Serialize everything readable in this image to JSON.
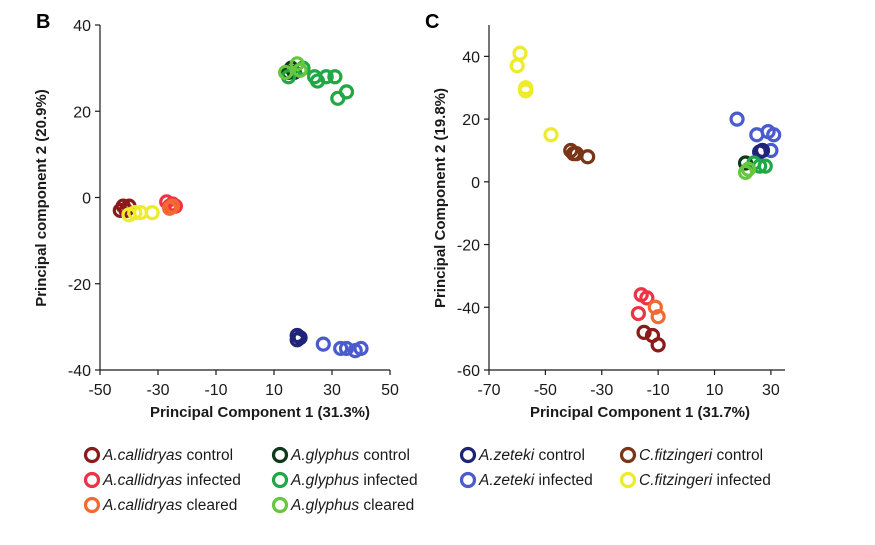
{
  "chart_data": [
    {
      "panel": "B",
      "type": "scatter",
      "xlabel": "Principal Component 1 (31.3%)",
      "ylabel": "Principal component 2 (20.9%)",
      "xlim": [
        -50,
        50
      ],
      "ylim": [
        -40,
        40
      ],
      "xticks": [
        "-50",
        "-30",
        "-10",
        "10",
        "30",
        "50"
      ],
      "yticks": [
        "40",
        "20",
        "0",
        "-20",
        "-40"
      ],
      "series": [
        {
          "group": "ac_control",
          "points": [
            [
              -43,
              -3
            ],
            [
              -42,
              -2
            ],
            [
              -41,
              -3
            ],
            [
              -40,
              -2
            ]
          ]
        },
        {
          "group": "ac_infected",
          "points": [
            [
              -27,
              -1
            ],
            [
              -26,
              -2
            ],
            [
              -25,
              -1.5
            ],
            [
              -24,
              -2
            ]
          ]
        },
        {
          "group": "ac_cleared",
          "points": [
            [
              -26,
              -2.5
            ],
            [
              -25,
              -2
            ]
          ]
        },
        {
          "group": "cf_infected",
          "points": [
            [
              -40,
              -4
            ],
            [
              -38,
              -3.5
            ],
            [
              -36,
              -3.5
            ],
            [
              -32,
              -3.5
            ]
          ]
        },
        {
          "group": "ag_control",
          "points": [
            [
              15,
              29
            ],
            [
              16,
              30
            ],
            [
              17,
              29
            ]
          ]
        },
        {
          "group": "ag_infected",
          "points": [
            [
              15,
              28
            ],
            [
              20,
              30
            ],
            [
              24,
              28
            ],
            [
              25,
              27
            ],
            [
              28,
              28
            ],
            [
              31,
              28
            ],
            [
              32,
              23
            ],
            [
              35,
              24.5
            ]
          ]
        },
        {
          "group": "ag_cleared",
          "points": [
            [
              14,
              29
            ],
            [
              18,
              31
            ],
            [
              19,
              29.5
            ]
          ]
        },
        {
          "group": "az_control",
          "points": [
            [
              18,
              -32
            ],
            [
              18,
              -33
            ],
            [
              19,
              -32.5
            ]
          ]
        },
        {
          "group": "az_infected",
          "points": [
            [
              27,
              -34
            ],
            [
              33,
              -35
            ],
            [
              35,
              -35
            ],
            [
              38,
              -35.5
            ],
            [
              40,
              -35
            ]
          ]
        }
      ]
    },
    {
      "panel": "C",
      "type": "scatter",
      "xlabel": "Principal Component 1 (31.7%)",
      "ylabel": "Principal Component 2 (19.8%)",
      "xlim": [
        -70,
        35
      ],
      "ylim": [
        -60,
        50
      ],
      "xticks": [
        "-70",
        "-50",
        "-30",
        "-10",
        "10",
        "30"
      ],
      "yticks": [
        "40",
        "20",
        "0",
        "-20",
        "-40",
        "-60"
      ],
      "series": [
        {
          "group": "cf_infected",
          "points": [
            [
              -59,
              41
            ],
            [
              -60,
              37
            ],
            [
              -57,
              30
            ],
            [
              -57,
              29
            ],
            [
              -48,
              15
            ]
          ]
        },
        {
          "group": "cf_control",
          "points": [
            [
              -41,
              10
            ],
            [
              -40,
              9
            ],
            [
              -39,
              9
            ],
            [
              -35,
              8
            ]
          ]
        },
        {
          "group": "ac_infected",
          "points": [
            [
              -16,
              -36
            ],
            [
              -14,
              -37
            ],
            [
              -17,
              -42
            ]
          ]
        },
        {
          "group": "ac_cleared",
          "points": [
            [
              -11,
              -40
            ],
            [
              -10,
              -43
            ]
          ]
        },
        {
          "group": "ac_control",
          "points": [
            [
              -15,
              -48
            ],
            [
              -12,
              -49
            ],
            [
              -10,
              -52
            ]
          ]
        },
        {
          "group": "az_infected",
          "points": [
            [
              18,
              20
            ],
            [
              25,
              15
            ],
            [
              29,
              16
            ],
            [
              31,
              15
            ],
            [
              30,
              10
            ],
            [
              27,
              10
            ]
          ]
        },
        {
          "group": "az_control",
          "points": [
            [
              27,
              10
            ],
            [
              26,
              9.5
            ]
          ]
        },
        {
          "group": "ag_control",
          "points": [
            [
              21,
              6
            ]
          ]
        },
        {
          "group": "ag_infected",
          "points": [
            [
              24,
              6
            ],
            [
              28,
              5
            ],
            [
              26,
              5
            ]
          ]
        },
        {
          "group": "ag_cleared",
          "points": [
            [
              22,
              4
            ],
            [
              21,
              3
            ]
          ]
        }
      ]
    }
  ],
  "legend": [
    {
      "id": "ac_control",
      "species": "A.callidryas",
      "status": "control",
      "color": "#8b1a1a"
    },
    {
      "id": "ac_infected",
      "species": "A.callidryas",
      "status": "infected",
      "color": "#ee3344"
    },
    {
      "id": "ac_cleared",
      "species": "A.callidryas",
      "status": "cleared",
      "color": "#f26a2e"
    },
    {
      "id": "ag_control",
      "species": "A.glyphus",
      "status": "control",
      "color": "#0f3a1a"
    },
    {
      "id": "ag_infected",
      "species": "A.glyphus",
      "status": "infected",
      "color": "#20a845"
    },
    {
      "id": "ag_cleared",
      "species": "A.glyphus",
      "status": "cleared",
      "color": "#66c63e"
    },
    {
      "id": "az_control",
      "species": "A.zeteki",
      "status": "control",
      "color": "#1f237a"
    },
    {
      "id": "az_infected",
      "species": "A.zeteki",
      "status": "infected",
      "color": "#4a5bd0"
    },
    {
      "id": "cf_control",
      "species": "C.fitzingeri",
      "status": "control",
      "color": "#7a3416"
    },
    {
      "id": "cf_infected",
      "species": "C.fitzingeri",
      "status": "infected",
      "color": "#ecec2a"
    }
  ]
}
